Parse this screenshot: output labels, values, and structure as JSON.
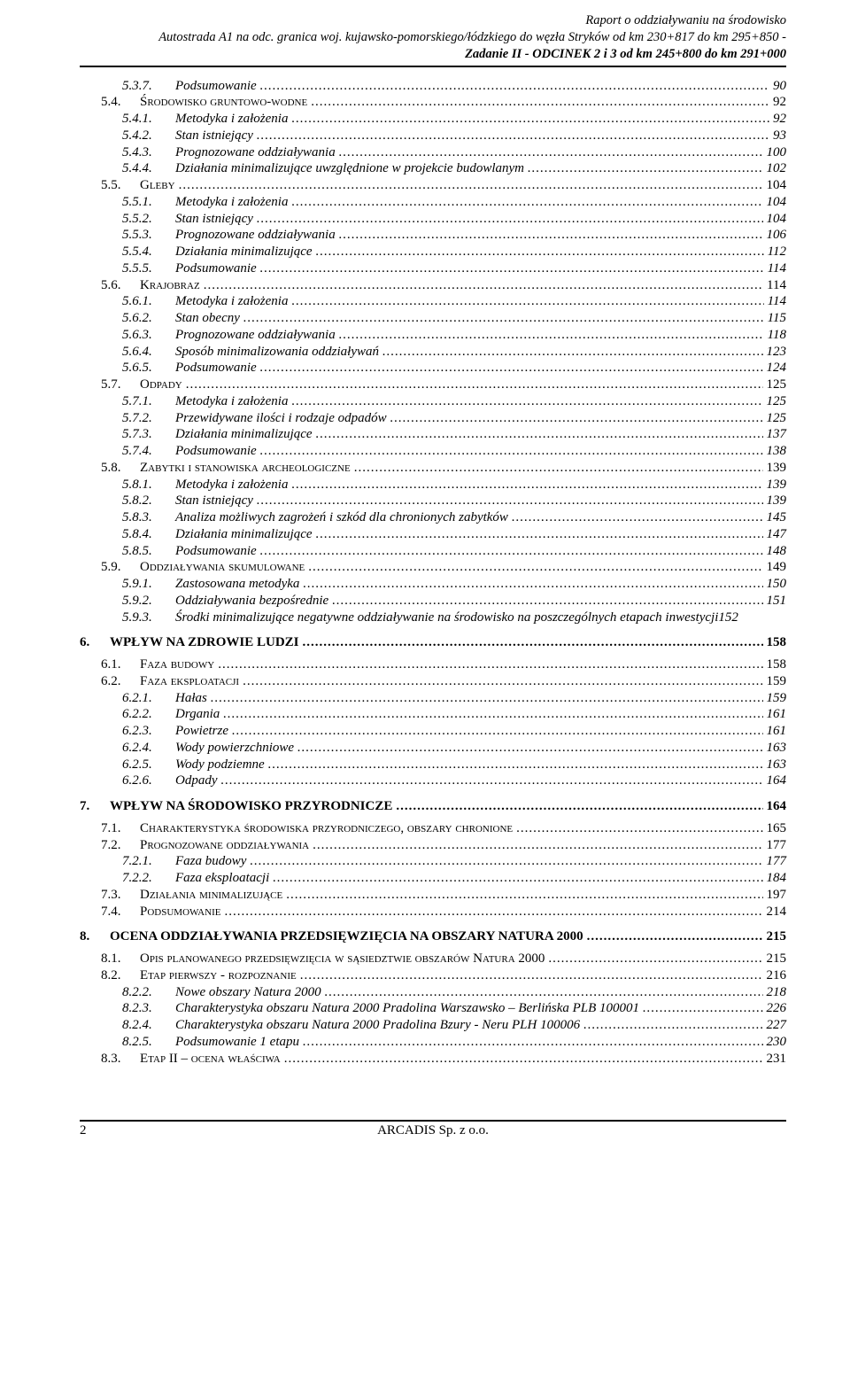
{
  "header": {
    "line1": "Raport o oddziaływaniu na środowisko",
    "line2": "Autostrada A1 na odc. granica woj. kujawsko-pomorskiego/łódzkiego do węzła Stryków od km 230+817 do km 295+850 -",
    "line3": "Zadanie II - ODCINEK 2  i 3 od km 245+800 do km 291+000"
  },
  "toc": [
    {
      "level": 2,
      "num": "5.3.7.",
      "title": "Podsumowanie",
      "page": "90"
    },
    {
      "level": 1,
      "num": "5.4.",
      "title": "Środowisko gruntowo-wodne",
      "smallcaps": true,
      "page": "92"
    },
    {
      "level": 2,
      "num": "5.4.1.",
      "title": "Metodyka i założenia",
      "page": "92"
    },
    {
      "level": 2,
      "num": "5.4.2.",
      "title": "Stan istniejący",
      "page": "93"
    },
    {
      "level": 2,
      "num": "5.4.3.",
      "title": "Prognozowane oddziaływania",
      "page": "100"
    },
    {
      "level": 2,
      "num": "5.4.4.",
      "title": "Działania minimalizujące uwzględnione w projekcie budowlanym",
      "page": "102"
    },
    {
      "level": 1,
      "num": "5.5.",
      "title": "Gleby",
      "smallcaps": true,
      "page": "104"
    },
    {
      "level": 2,
      "num": "5.5.1.",
      "title": "Metodyka i założenia",
      "page": "104"
    },
    {
      "level": 2,
      "num": "5.5.2.",
      "title": "Stan istniejący",
      "page": "104"
    },
    {
      "level": 2,
      "num": "5.5.3.",
      "title": "Prognozowane oddziaływania",
      "page": "106"
    },
    {
      "level": 2,
      "num": "5.5.4.",
      "title": "Działania minimalizujące",
      "page": "112"
    },
    {
      "level": 2,
      "num": "5.5.5.",
      "title": "Podsumowanie",
      "page": "114"
    },
    {
      "level": 1,
      "num": "5.6.",
      "title": "Krajobraz",
      "smallcaps": true,
      "page": "114"
    },
    {
      "level": 2,
      "num": "5.6.1.",
      "title": "Metodyka i założenia",
      "page": "114"
    },
    {
      "level": 2,
      "num": "5.6.2.",
      "title": "Stan obecny",
      "page": "115"
    },
    {
      "level": 2,
      "num": "5.6.3.",
      "title": "Prognozowane oddziaływania",
      "page": "118"
    },
    {
      "level": 2,
      "num": "5.6.4.",
      "title": "Sposób minimalizowania oddziaływań",
      "page": "123"
    },
    {
      "level": 2,
      "num": "5.6.5.",
      "title": "Podsumowanie",
      "page": "124"
    },
    {
      "level": 1,
      "num": "5.7.",
      "title": "Odpady",
      "smallcaps": true,
      "page": "125"
    },
    {
      "level": 2,
      "num": "5.7.1.",
      "title": "Metodyka i założenia",
      "page": "125"
    },
    {
      "level": 2,
      "num": "5.7.2.",
      "title": "Przewidywane ilości i rodzaje odpadów",
      "page": "125"
    },
    {
      "level": 2,
      "num": "5.7.3.",
      "title": "Działania minimalizujące",
      "page": "137"
    },
    {
      "level": 2,
      "num": "5.7.4.",
      "title": "Podsumowanie",
      "page": "138"
    },
    {
      "level": 1,
      "num": "5.8.",
      "title": "Zabytki i stanowiska archeologiczne",
      "smallcaps": true,
      "page": "139"
    },
    {
      "level": 2,
      "num": "5.8.1.",
      "title": "Metodyka i założenia",
      "page": "139"
    },
    {
      "level": 2,
      "num": "5.8.2.",
      "title": "Stan istniejący",
      "page": "139"
    },
    {
      "level": 2,
      "num": "5.8.3.",
      "title": "Analiza możliwych zagrożeń i szkód dla chronionych zabytków",
      "page": "145"
    },
    {
      "level": 2,
      "num": "5.8.4.",
      "title": "Działania minimalizujące",
      "page": "147"
    },
    {
      "level": 2,
      "num": "5.8.5.",
      "title": "Podsumowanie",
      "page": "148"
    },
    {
      "level": 1,
      "num": "5.9.",
      "title": "Oddziaływania skumulowane",
      "smallcaps": true,
      "page": "149"
    },
    {
      "level": 2,
      "num": "5.9.1.",
      "title": "Zastosowana metodyka",
      "page": "150"
    },
    {
      "level": 2,
      "num": "5.9.2.",
      "title": "Oddziaływania bezpośrednie",
      "page": "151"
    },
    {
      "level": 2,
      "num": "5.9.3.",
      "title": "Środki minimalizujące negatywne oddziaływanie na środowisko na poszczególnych etapach inwestycji152",
      "noleader": true,
      "nopage": true
    },
    {
      "level": 0,
      "num": "6.",
      "title": "WPŁYW NA ZDROWIE LUDZI",
      "page": "158"
    },
    {
      "level": 1,
      "num": "6.1.",
      "title": "Faza budowy",
      "smallcaps": true,
      "page": "158"
    },
    {
      "level": 1,
      "num": "6.2.",
      "title": "Faza eksploatacji",
      "smallcaps": true,
      "page": "159"
    },
    {
      "level": 2,
      "num": "6.2.1.",
      "title": "Hałas",
      "page": "159"
    },
    {
      "level": 2,
      "num": "6.2.2.",
      "title": "Drgania",
      "page": "161"
    },
    {
      "level": 2,
      "num": "6.2.3.",
      "title": "Powietrze",
      "page": "161"
    },
    {
      "level": 2,
      "num": "6.2.4.",
      "title": "Wody powierzchniowe",
      "page": "163"
    },
    {
      "level": 2,
      "num": "6.2.5.",
      "title": "Wody podziemne",
      "page": "163"
    },
    {
      "level": 2,
      "num": "6.2.6.",
      "title": "Odpady",
      "page": "164"
    },
    {
      "level": 0,
      "num": "7.",
      "title": "WPŁYW NA ŚRODOWISKO PRZYRODNICZE",
      "page": "164"
    },
    {
      "level": 1,
      "num": "7.1.",
      "title": "Charakterystyka środowiska przyrodniczego, obszary chronione",
      "smallcaps": true,
      "page": "165"
    },
    {
      "level": 1,
      "num": "7.2.",
      "title": "Prognozowane oddziaływania",
      "smallcaps": true,
      "page": "177"
    },
    {
      "level": 2,
      "num": "7.2.1.",
      "title": "Faza budowy",
      "page": "177"
    },
    {
      "level": 2,
      "num": "7.2.2.",
      "title": "Faza eksploatacji",
      "page": "184"
    },
    {
      "level": 1,
      "num": "7.3.",
      "title": "Działania minimalizujące",
      "smallcaps": true,
      "page": "197"
    },
    {
      "level": 1,
      "num": "7.4.",
      "title": "Podsumowanie",
      "smallcaps": true,
      "page": "214"
    },
    {
      "level": 0,
      "num": "8.",
      "title": "OCENA ODDZIAŁYWANIA PRZEDSIĘWZIĘCIA NA OBSZARY NATURA 2000",
      "page": "215"
    },
    {
      "level": 1,
      "num": "8.1.",
      "title": "Opis planowanego przedsięwzięcia w sąsiedztwie obszarów Natura 2000",
      "smallcaps": true,
      "page": "215"
    },
    {
      "level": 1,
      "num": "8.2.",
      "title": "Etap pierwszy - rozpoznanie",
      "smallcaps": true,
      "page": "216"
    },
    {
      "level": 2,
      "num": "8.2.2.",
      "title": "Nowe  obszary Natura 2000",
      "page": "218"
    },
    {
      "level": 2,
      "num": "8.2.3.",
      "title": "Charakterystyka obszaru Natura 2000 Pradolina Warszawsko – Berlińska  PLB 100001",
      "page": "226"
    },
    {
      "level": 2,
      "num": "8.2.4.",
      "title": "Charakterystyka obszaru Natura 2000 Pradolina Bzury - Neru PLH 100006",
      "page": "227"
    },
    {
      "level": 2,
      "num": "8.2.5.",
      "title": "Podsumowanie  1 etapu",
      "page": "230"
    },
    {
      "level": 1,
      "num": "8.3.",
      "title": "Etap II – ocena właściwa",
      "smallcaps": true,
      "page": "231"
    }
  ],
  "footer": {
    "pageNumber": "2",
    "company": "ARCADIS Sp. z o.o."
  }
}
